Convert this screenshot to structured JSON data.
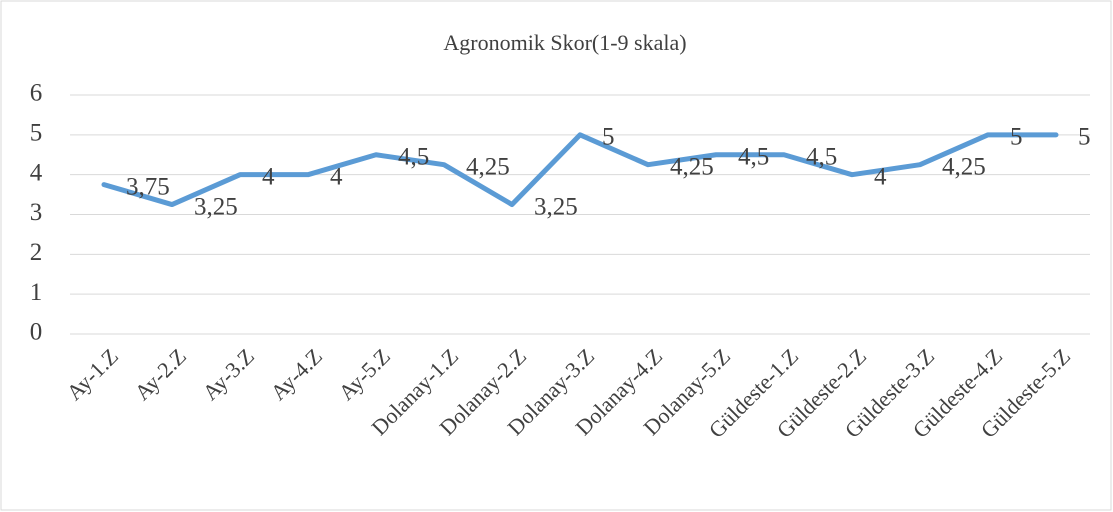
{
  "chart_data": {
    "type": "line",
    "title": "Agronomik Skor(1-9 skala)",
    "categories": [
      "Ay-1.Z",
      "Ay-2.Z",
      "Ay-3.Z",
      "Ay-4.Z",
      "Ay-5.Z",
      "Dolanay-1.Z",
      "Dolanay-2.Z",
      "Dolanay-3.Z",
      "Dolanay-4.Z",
      "Dolanay-5.Z",
      "Güldeste-1.Z",
      "Güldeste-2.Z",
      "Güldeste-3.Z",
      "Güldeste-4.Z",
      "Güldeste-5.Z"
    ],
    "values": [
      3.75,
      3.25,
      4,
      4,
      4.5,
      4.25,
      3.25,
      5,
      4.25,
      4.5,
      4.5,
      4,
      4.25,
      5,
      5
    ],
    "value_labels": [
      "3,75",
      "3,25",
      "4",
      "4",
      "4,5",
      "4,25",
      "3,25",
      "5",
      "4,25",
      "4,5",
      "4,5",
      "4",
      "4,25",
      "5",
      "5"
    ],
    "color": "#5b9bd5",
    "ylim": [
      0,
      6
    ],
    "yticks": [
      0,
      1,
      2,
      3,
      4,
      5,
      6
    ],
    "grid": true
  }
}
